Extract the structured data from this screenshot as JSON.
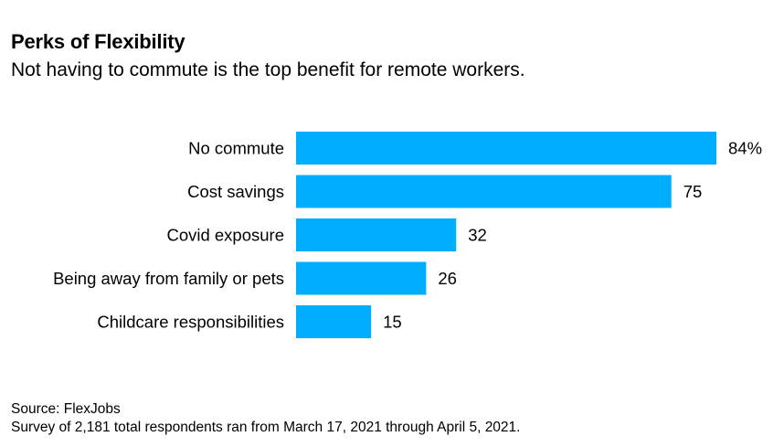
{
  "header": {
    "title": "Perks of Flexibility",
    "subtitle": "Not having to commute is the top benefit for remote workers."
  },
  "footer": {
    "source": "Source: FlexJobs",
    "note": "Survey of 2,181 total respondents ran from March 17, 2021 through April 5, 2021."
  },
  "chart_data": {
    "type": "bar",
    "orientation": "horizontal",
    "title": "Perks of Flexibility",
    "subtitle": "Not having to commute is the top benefit for remote workers.",
    "categories": [
      "No commute",
      "Cost savings",
      "Covid exposure",
      "Being away from family or pets",
      "Childcare responsibilities"
    ],
    "values": [
      84,
      75,
      32,
      26,
      15
    ],
    "value_labels": [
      "84%",
      "75",
      "32",
      "26",
      "15"
    ],
    "unit": "%",
    "xlabel": "",
    "ylabel": "",
    "xlim": [
      0,
      84
    ],
    "grid": false,
    "legend": "none",
    "bar_color": "#00aeff"
  }
}
